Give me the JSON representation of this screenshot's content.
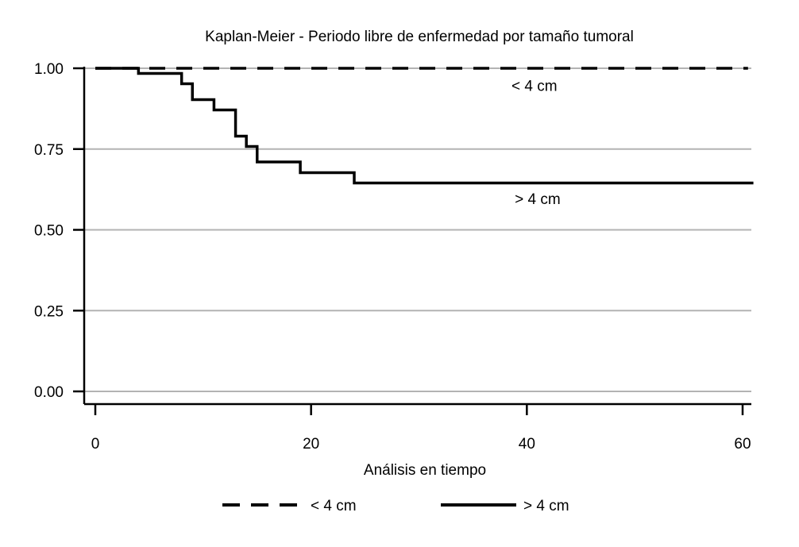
{
  "chart_data": {
    "type": "line",
    "title": "Kaplan-Meier - Periodo libre de enfermedad por tamaño tumoral",
    "xlabel": "Análisis en tiempo",
    "ylabel": "",
    "xlim": [
      0,
      61
    ],
    "ylim": [
      0,
      1
    ],
    "x_ticks": [
      0,
      20,
      40,
      60
    ],
    "x_tick_labels": [
      "0",
      "20",
      "40",
      "60"
    ],
    "y_ticks": [
      0,
      0.25,
      0.5,
      0.75,
      1
    ],
    "y_tick_labels": [
      "0.00",
      "0.25",
      "0.50",
      "0.75",
      "1.00"
    ],
    "grid": true,
    "legend_position": "bottom",
    "series": [
      {
        "name": "< 4 cm",
        "style": "dashed",
        "color": "#000000",
        "step": true,
        "x": [
          0,
          60.5
        ],
        "y": [
          1.0,
          1.0
        ]
      },
      {
        "name": "> 4 cm",
        "style": "solid",
        "color": "#000000",
        "step": true,
        "x": [
          0,
          4,
          8,
          9,
          11,
          13,
          14,
          15,
          19,
          24,
          61
        ],
        "y": [
          1.0,
          0.984,
          0.952,
          0.903,
          0.871,
          0.79,
          0.758,
          0.71,
          0.677,
          0.645,
          0.645
        ]
      }
    ],
    "annotations": [
      {
        "text": "< 4 cm",
        "x": 40.7,
        "y": 0.93
      },
      {
        "text": "> 4 cm",
        "x": 41,
        "y": 0.58
      }
    ]
  }
}
